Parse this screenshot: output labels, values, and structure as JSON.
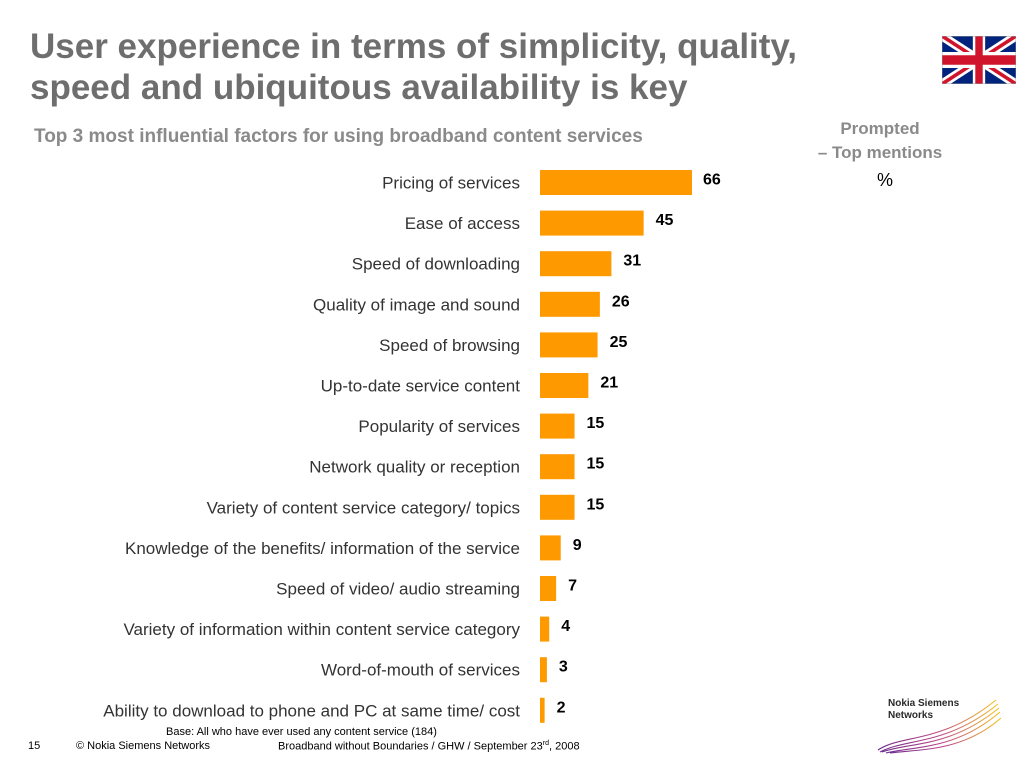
{
  "slide": {
    "title_line1": "User experience in terms of simplicity, quality,",
    "title_line2": "speed and ubiquitous availability is key",
    "subtitle": "Top 3 most influential factors for using broadband content services",
    "prompted_line1": "Prompted",
    "prompted_line2": "– Top mentions",
    "unit": "%",
    "base_note": "Base: All who have ever used any content service (184)",
    "footer": {
      "page_number": "15",
      "copyright": "© Nokia Siemens Networks",
      "doc_title": "Broadband without Boundaries / GHW / September 23",
      "doc_title_sup": "rd",
      "doc_year": ", 2008"
    },
    "logo_line1": "Nokia Siemens",
    "logo_line2": "Networks",
    "colors": {
      "bar": "#ff9900",
      "title": "#6e6e6e",
      "subtitle": "#8a8a8a"
    }
  },
  "chart_data": {
    "type": "bar",
    "orientation": "horizontal",
    "categories": [
      "Pricing of services",
      "Ease of access",
      "Speed of downloading",
      "Quality of image and sound",
      "Speed of browsing",
      "Up-to-date service content",
      "Popularity of services",
      "Network quality or reception",
      "Variety of content service category/ topics",
      "Knowledge of the benefits/ information of the service",
      "Speed of video/ audio streaming",
      "Variety of information within content service category",
      "Word-of-mouth of services",
      "Ability to download to phone and PC at same time/ cost"
    ],
    "values": [
      66,
      45,
      31,
      26,
      25,
      21,
      15,
      15,
      15,
      9,
      7,
      4,
      3,
      2
    ],
    "xlim": [
      0,
      66
    ],
    "grid": false,
    "legend": "none"
  }
}
